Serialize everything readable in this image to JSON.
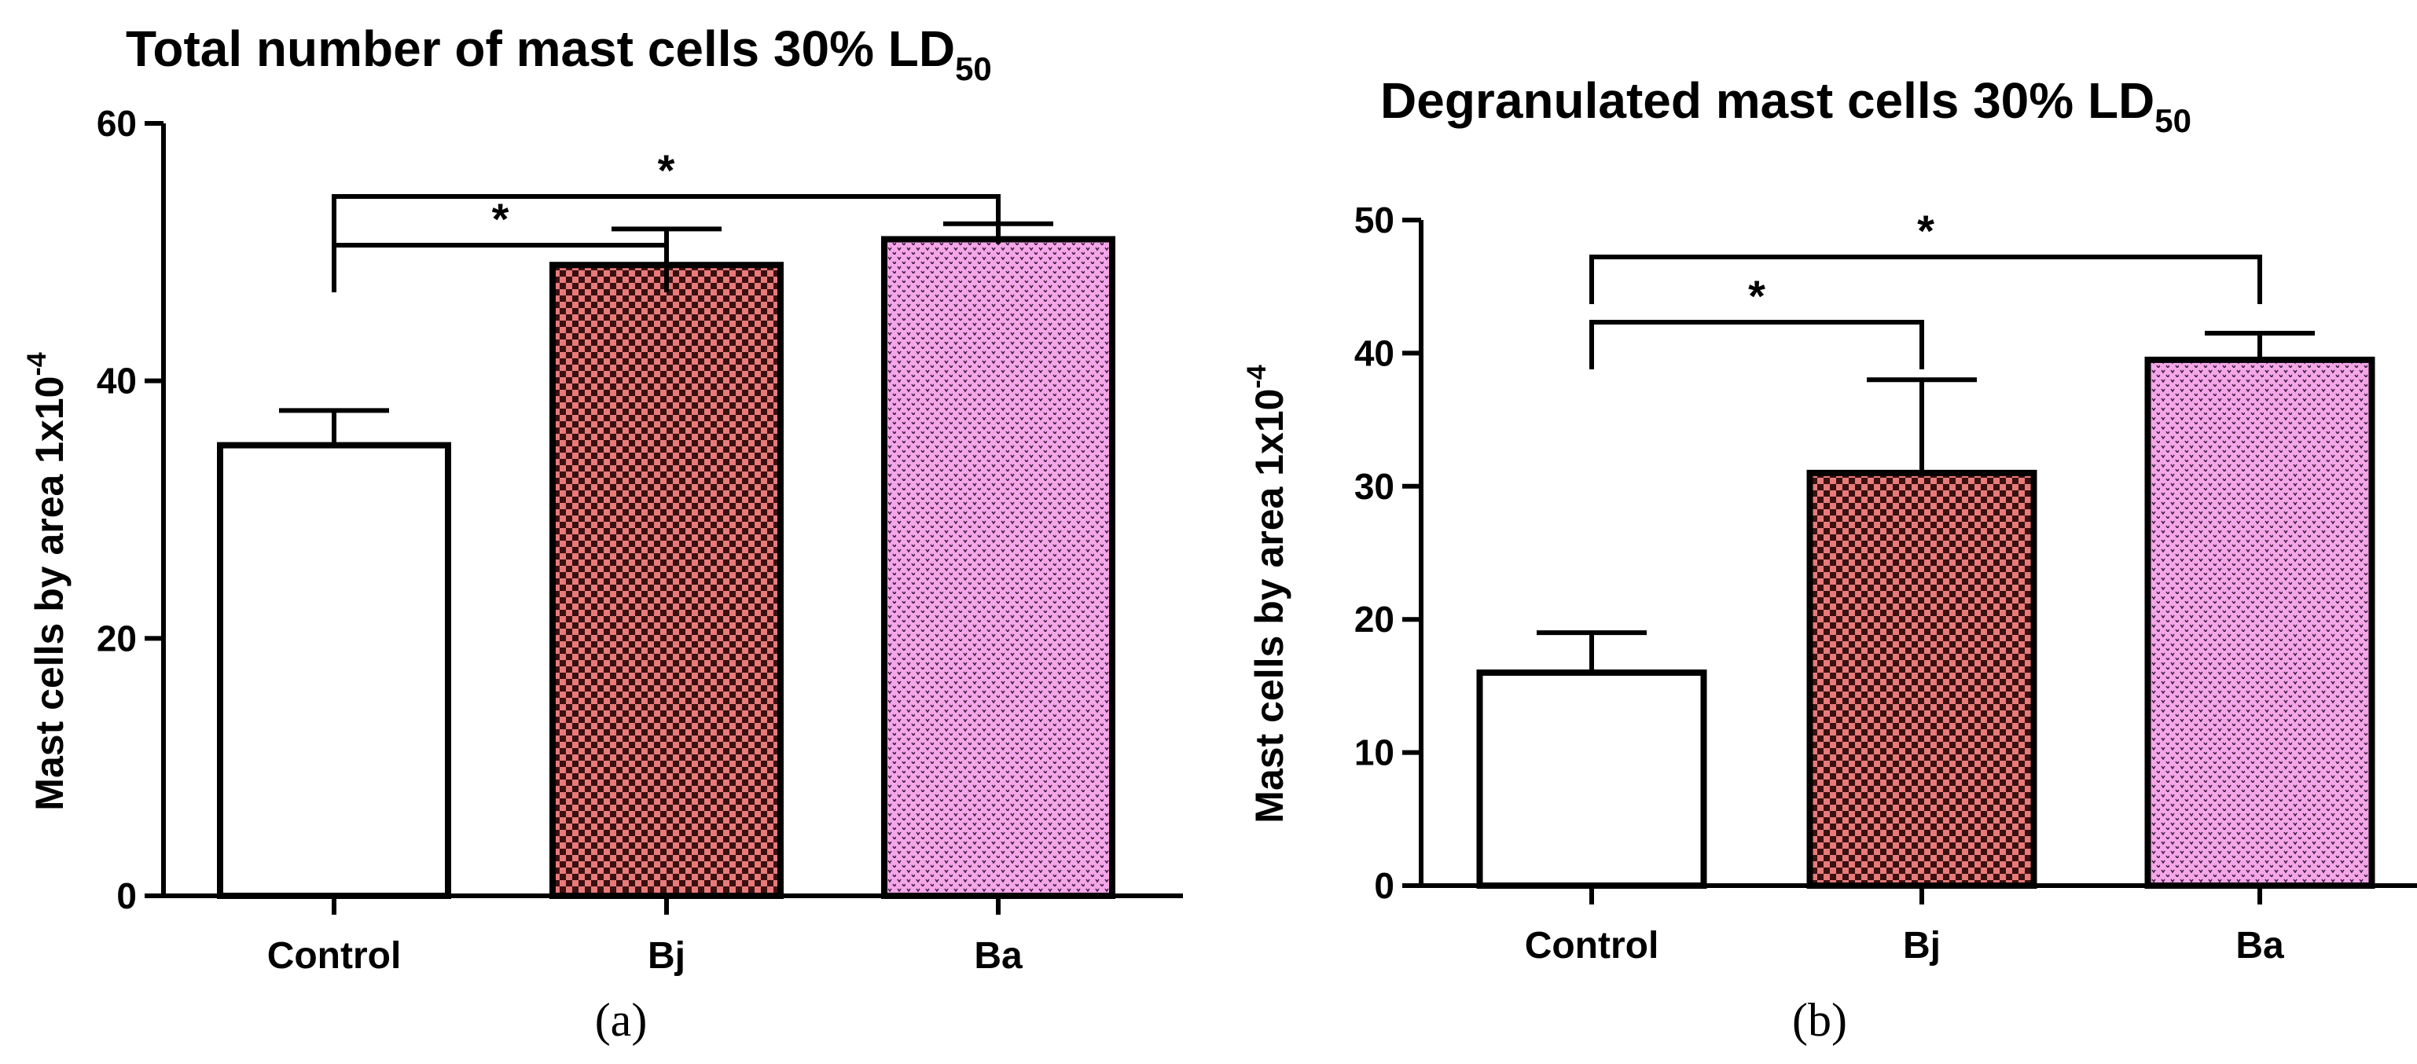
{
  "colors": {
    "bj": "#e87a7a",
    "ba": "#f4a6e8",
    "axis": "#000000",
    "control": "#ffffff"
  },
  "chart_data": [
    {
      "type": "bar",
      "panel_label": "(a)",
      "title": "Total number of mast cells 30% LD",
      "title_sub": "50",
      "ylabel": "Mast cells by area 1x10",
      "ylabel_sup": "-4",
      "categories": [
        "Control",
        "Bj",
        "Ba"
      ],
      "values": [
        35,
        49,
        51
      ],
      "errors": [
        2.7,
        2.8,
        1.2
      ],
      "ylim": [
        0,
        60
      ],
      "yticks": [
        "0",
        "20",
        "40",
        "60"
      ],
      "significance": [
        {
          "from": "Control",
          "to": "Bj",
          "label": "*"
        },
        {
          "from": "Control",
          "to": "Ba",
          "label": "*"
        }
      ]
    },
    {
      "type": "bar",
      "panel_label": "(b)",
      "title": "Degranulated mast cells 30% LD",
      "title_sub": "50",
      "ylabel": "Mast cells by area 1x10",
      "ylabel_sup": "-4",
      "categories": [
        "Control",
        "Bj",
        "Ba"
      ],
      "values": [
        16,
        31,
        39.5
      ],
      "errors": [
        3,
        7,
        2
      ],
      "ylim": [
        0,
        50
      ],
      "yticks": [
        "0",
        "10",
        "20",
        "30",
        "40",
        "50"
      ],
      "significance": [
        {
          "from": "Control",
          "to": "Bj",
          "label": "*"
        },
        {
          "from": "Control",
          "to": "Ba",
          "label": "*"
        }
      ]
    }
  ]
}
